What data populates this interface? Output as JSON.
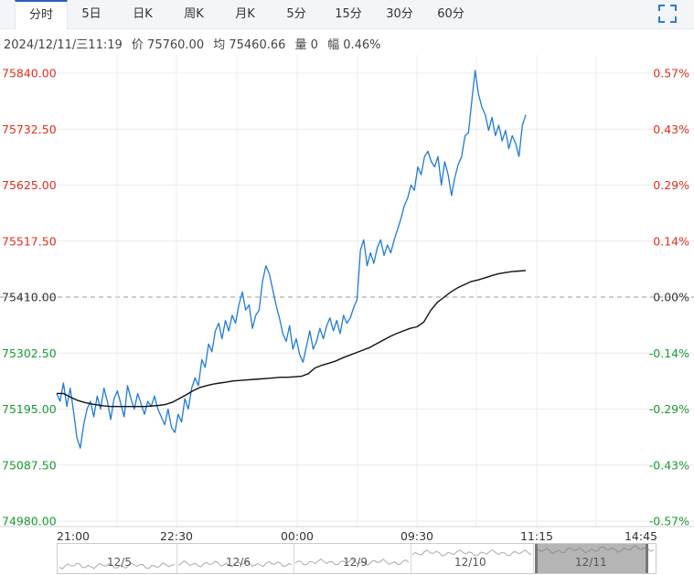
{
  "tabs": [
    {
      "label": "分时",
      "active": true
    },
    {
      "label": "5日",
      "active": false
    },
    {
      "label": "日K",
      "active": false
    },
    {
      "label": "周K",
      "active": false
    },
    {
      "label": "月K",
      "active": false
    },
    {
      "label": "5分",
      "active": false
    },
    {
      "label": "15分",
      "active": false
    },
    {
      "label": "30分",
      "active": false
    },
    {
      "label": "60分",
      "active": false
    }
  ],
  "fullscreen_icon": "expand-icon",
  "info": {
    "datetime": "2024/12/11/三11:19",
    "price": "价 75760.00",
    "avg": "均 75460.66",
    "volume": "量 0",
    "change": "幅 0.46%"
  },
  "colors": {
    "up": "#e0301e",
    "down": "#1a9c33",
    "neutral": "#333333",
    "price_line": "#1f7bd6",
    "avg_line": "#111111"
  },
  "chart_data": {
    "type": "line",
    "y_ticks_left": [
      "75840.00",
      "75732.50",
      "75625.00",
      "75517.50",
      "75410.00",
      "75302.50",
      "75195.00",
      "75087.50",
      "74980.00"
    ],
    "y_ticks_right": [
      "0.57%",
      "0.43%",
      "0.29%",
      "0.14%",
      "0.00%",
      "-0.14%",
      "-0.29%",
      "-0.43%",
      "-0.57%"
    ],
    "x_ticks": [
      "21:00",
      "22:30",
      "00:00",
      "09:30",
      "11:15",
      "14:45"
    ],
    "ylim": [
      74980.0,
      75840.0
    ],
    "baseline": 75410.0,
    "series": [
      {
        "role": "price",
        "values": [
          75225,
          75210,
          75245,
          75200,
          75235,
          75190,
          75140,
          75120,
          75165,
          75195,
          75210,
          75180,
          75220,
          75195,
          75235,
          75210,
          75175,
          75215,
          75230,
          75205,
          75180,
          75240,
          75215,
          75195,
          75225,
          75205,
          75185,
          75210,
          75200,
          75220,
          75195,
          75180,
          75165,
          75195,
          75160,
          75150,
          75185,
          75170,
          75215,
          75195,
          75235,
          75255,
          75240,
          75290,
          75275,
          75320,
          75305,
          75345,
          75360,
          75330,
          75365,
          75345,
          75375,
          75360,
          75395,
          75420,
          75385,
          75395,
          75350,
          75375,
          75385,
          75440,
          75470,
          75455,
          75425,
          75395,
          75370,
          75340,
          75325,
          75355,
          75310,
          75330,
          75300,
          75285,
          75315,
          75345,
          75310,
          75325,
          75350,
          75330,
          75355,
          75370,
          75345,
          75365,
          75340,
          75375,
          75360,
          75370,
          75390,
          75405,
          75500,
          75520,
          75470,
          75495,
          75475,
          75505,
          75520,
          75490,
          75510,
          75495,
          75520,
          75540,
          75560,
          75585,
          75600,
          75625,
          75615,
          75660,
          75645,
          75680,
          75690,
          75670,
          75660,
          75680,
          75625,
          75670,
          75645,
          75605,
          75640,
          75665,
          75680,
          75720,
          75725,
          75785,
          75845,
          75800,
          75775,
          75760,
          75730,
          75755,
          75720,
          75740,
          75710,
          75730,
          75695,
          75720,
          75705,
          75680,
          75740,
          75760
        ]
      },
      {
        "role": "average",
        "values": [
          75225,
          75225,
          75218,
          75212,
          75208,
          75205,
          75203,
          75201,
          75200,
          75200,
          75200,
          75200,
          75200,
          75200,
          75201,
          75202,
          75204,
          75208,
          75215,
          75222,
          75230,
          75236,
          75240,
          75243,
          75245,
          75247,
          75249,
          75250,
          75251,
          75252,
          75253,
          75254,
          75255,
          75256,
          75256,
          75257,
          75258,
          75263,
          75274,
          75279,
          75283,
          75287,
          75293,
          75298,
          75303,
          75308,
          75313,
          75320,
          75327,
          75334,
          75340,
          75345,
          75350,
          75353,
          75362,
          75384,
          75400,
          75410,
          75420,
          75428,
          75434,
          75440,
          75443,
          75447,
          75451,
          75455,
          75457,
          75459,
          75460,
          75461
        ]
      }
    ]
  },
  "navigator": {
    "days": [
      "12/5",
      "12/6",
      "12/9",
      "12/10",
      "12/11"
    ]
  }
}
